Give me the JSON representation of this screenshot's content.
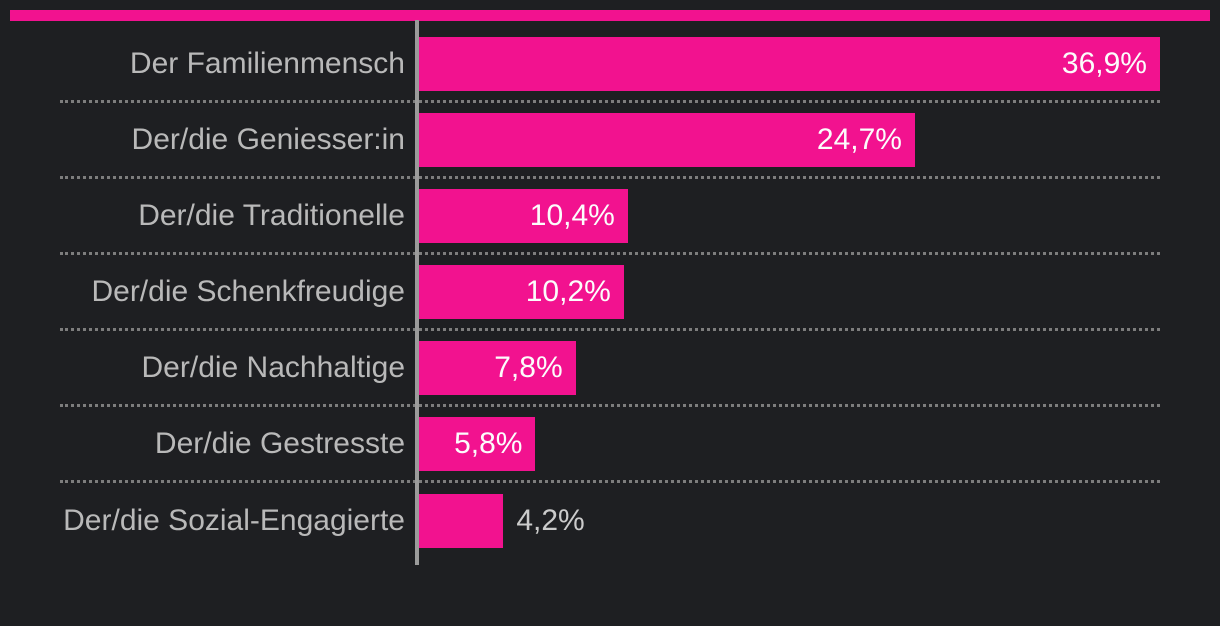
{
  "page": {
    "background_color": "#1e1f22",
    "accent_bar_color": "#f2128f"
  },
  "chart_data": {
    "type": "bar",
    "orientation": "horizontal",
    "title": "",
    "xlabel": "",
    "ylabel": "",
    "legend": "none",
    "grid": "dotted-row-separators",
    "xlim": [
      0,
      36.9
    ],
    "categories": [
      "Der Familienmensch",
      "Der/die Geniesser:in",
      "Der/die Traditionelle",
      "Der/die Schenkfreudige",
      "Der/die Nachhaltige",
      "Der/die Gestresste",
      "Der/die Sozial-Engagierte"
    ],
    "values": [
      36.9,
      24.7,
      10.4,
      10.2,
      7.8,
      5.8,
      4.2
    ],
    "value_labels": [
      "36,9%",
      "24,7%",
      "10,4%",
      "10,2%",
      "7,8%",
      "5,8%",
      "4,2%"
    ],
    "value_label_positions": [
      "inside",
      "inside",
      "inside",
      "inside",
      "inside",
      "inside",
      "outside"
    ],
    "colors": {
      "bar": "#f2128f",
      "category_label": "#b9b9b9",
      "value_label_inside": "#fcfcfc",
      "value_label_outside": "#cbcbcb",
      "axis_line": "#9b9b9b",
      "separator_dots": "#7d7d7d",
      "background": "#1e1f22"
    }
  }
}
